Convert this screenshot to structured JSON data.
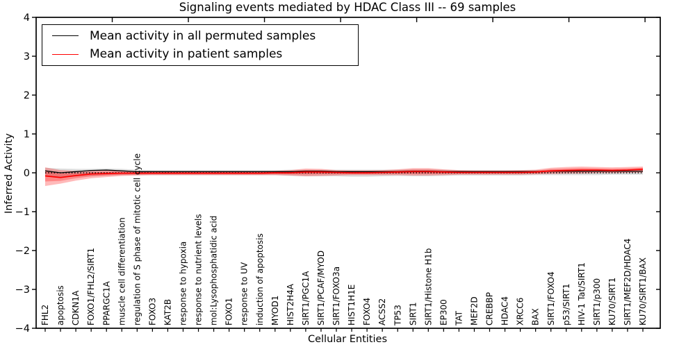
{
  "figure": {
    "title": "Signaling events mediated by HDAC Class III -- 69 samples"
  },
  "axes": {
    "xlabel": "Cellular Entities",
    "ylabel": "Inferred Activity",
    "yticklabels": [
      "4",
      "3",
      "2",
      "1",
      "0",
      "−1",
      "−2",
      "−3",
      "−4"
    ]
  },
  "legend": {
    "entries": [
      {
        "label": "Mean activity in all permuted samples",
        "color": "#000000"
      },
      {
        "label": "Mean activity in patient samples",
        "color": "#ff0000"
      }
    ]
  },
  "chart_data": {
    "type": "line",
    "title": "Signaling events mediated by HDAC Class III -- 69 samples",
    "xlabel": "Cellular Entities",
    "ylabel": "Inferred Activity",
    "ylim": [
      -4,
      4
    ],
    "yticks": [
      4,
      3,
      2,
      1,
      0,
      -1,
      -2,
      -3,
      -4
    ],
    "grid": false,
    "legend_position": "upper left",
    "categories": [
      "FHL2",
      "apoptosis",
      "CDKN1A",
      "FOXO1/FHL2/SIRT1",
      "PPARGC1A",
      "muscle cell differentiation",
      "regulation of S phase of mitotic cell cycle",
      "FOXO3",
      "KAT2B",
      "response to hypoxia",
      "response to nutrient levels",
      "mol:Lysophosphatidic acid",
      "FOXO1",
      "response to UV",
      "induction of apoptosis",
      "MYOD1",
      "HIST2H4A",
      "SIRT1/PGC1A",
      "SIRT1/PCAF/MYOD",
      "SIRT1/FOXO3a",
      "HIST1H1E",
      "FOXO4",
      "ACSS2",
      "TP53",
      "SIRT1",
      "SIRT1/Histone H1b",
      "EP300",
      "TAT",
      "MEF2D",
      "CREBBP",
      "HDAC4",
      "XRCC6",
      "BAX",
      "SIRT1/FOXO4",
      "p53/SIRT1",
      "HIV-1 Tat/SIRT1",
      "SIRT1/p300",
      "KU70/SIRT1",
      "SIRT1/MEF2D/HDAC4",
      "KU70/SIRT1/BAX"
    ],
    "series": [
      {
        "name": "Mean activity in all permuted samples",
        "color": "#000000",
        "style": "solid",
        "values": [
          0.05,
          0.0,
          0.03,
          0.06,
          0.07,
          0.05,
          0.03,
          0.03,
          0.03,
          0.03,
          0.03,
          0.03,
          0.03,
          0.03,
          0.03,
          0.03,
          0.03,
          0.04,
          0.04,
          0.03,
          0.03,
          0.03,
          0.03,
          0.03,
          0.04,
          0.04,
          0.03,
          0.03,
          0.03,
          0.03,
          0.03,
          0.03,
          0.03,
          0.04,
          0.04,
          0.04,
          0.04,
          0.04,
          0.04,
          0.04
        ]
      },
      {
        "name": "Mean activity in patient samples",
        "color": "#ff0000",
        "style": "solid",
        "values": [
          -0.08,
          -0.12,
          -0.07,
          -0.03,
          -0.02,
          -0.01,
          -0.01,
          -0.01,
          -0.01,
          -0.01,
          -0.01,
          -0.01,
          -0.01,
          -0.01,
          -0.01,
          0.0,
          0.0,
          0.02,
          0.02,
          0.01,
          0.0,
          0.0,
          0.01,
          0.02,
          0.03,
          0.03,
          0.02,
          0.01,
          0.01,
          0.01,
          0.01,
          0.01,
          0.02,
          0.05,
          0.06,
          0.07,
          0.07,
          0.06,
          0.07,
          0.09
        ]
      }
    ],
    "bands": [
      {
        "name": "permuted-samples-band",
        "color": "#9e9e9e",
        "opacity": 0.35,
        "upper": [
          0.13,
          0.11,
          0.1,
          0.1,
          0.11,
          0.1,
          0.08,
          0.07,
          0.07,
          0.07,
          0.07,
          0.07,
          0.07,
          0.07,
          0.07,
          0.07,
          0.08,
          0.08,
          0.08,
          0.08,
          0.08,
          0.08,
          0.08,
          0.08,
          0.09,
          0.09,
          0.08,
          0.07,
          0.07,
          0.07,
          0.07,
          0.07,
          0.07,
          0.08,
          0.08,
          0.08,
          0.08,
          0.08,
          0.08,
          0.08
        ],
        "lower": [
          -0.08,
          -0.12,
          -0.1,
          -0.08,
          -0.07,
          -0.06,
          -0.06,
          -0.06,
          -0.06,
          -0.06,
          -0.06,
          -0.06,
          -0.06,
          -0.06,
          -0.06,
          -0.06,
          -0.08,
          -0.09,
          -0.09,
          -0.09,
          -0.1,
          -0.1,
          -0.09,
          -0.08,
          -0.09,
          -0.09,
          -0.08,
          -0.07,
          -0.07,
          -0.07,
          -0.07,
          -0.07,
          -0.06,
          -0.06,
          -0.06,
          -0.06,
          -0.06,
          -0.05,
          -0.05,
          -0.05
        ]
      },
      {
        "name": "patient-samples-band",
        "color": "#ff0000",
        "opacity": 0.27,
        "upper": [
          0.14,
          0.07,
          0.05,
          0.06,
          0.06,
          0.05,
          0.04,
          0.04,
          0.04,
          0.04,
          0.04,
          0.04,
          0.04,
          0.04,
          0.04,
          0.05,
          0.07,
          0.11,
          0.1,
          0.07,
          0.06,
          0.06,
          0.07,
          0.09,
          0.12,
          0.12,
          0.09,
          0.07,
          0.06,
          0.06,
          0.06,
          0.07,
          0.08,
          0.13,
          0.15,
          0.16,
          0.15,
          0.14,
          0.15,
          0.16
        ],
        "lower": [
          -0.34,
          -0.28,
          -0.2,
          -0.14,
          -0.11,
          -0.08,
          -0.07,
          -0.06,
          -0.06,
          -0.06,
          -0.06,
          -0.06,
          -0.06,
          -0.06,
          -0.06,
          -0.06,
          -0.07,
          -0.09,
          -0.08,
          -0.07,
          -0.06,
          -0.06,
          -0.06,
          -0.06,
          -0.07,
          -0.07,
          -0.06,
          -0.05,
          -0.05,
          -0.05,
          -0.05,
          -0.05,
          -0.04,
          -0.03,
          -0.02,
          -0.02,
          -0.01,
          -0.01,
          0.0,
          0.01
        ]
      }
    ],
    "zero_line": {
      "style": "dotted",
      "color": "#000000",
      "y": 0
    }
  }
}
